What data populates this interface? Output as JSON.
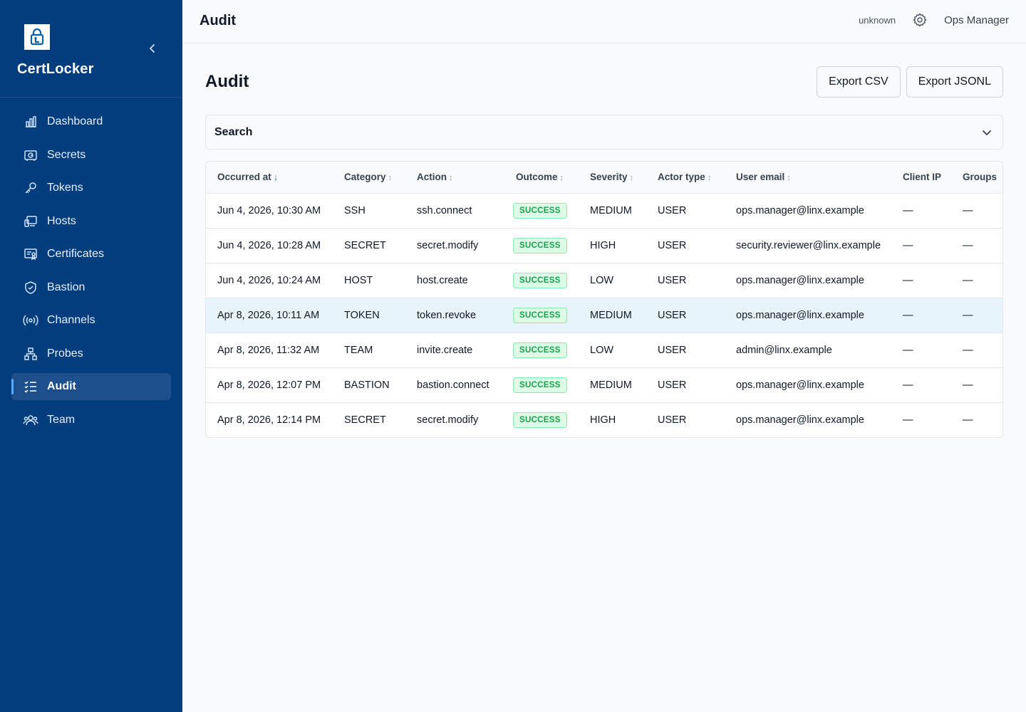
{
  "app": {
    "name": "CertLocker"
  },
  "sidebar": {
    "items": [
      {
        "label": "Dashboard",
        "icon": "bar-chart-icon"
      },
      {
        "label": "Secrets",
        "icon": "secrets-icon"
      },
      {
        "label": "Tokens",
        "icon": "key-icon"
      },
      {
        "label": "Hosts",
        "icon": "hosts-icon"
      },
      {
        "label": "Certificates",
        "icon": "certificate-icon"
      },
      {
        "label": "Bastion",
        "icon": "shield-icon"
      },
      {
        "label": "Channels",
        "icon": "broadcast-icon"
      },
      {
        "label": "Probes",
        "icon": "network-icon"
      },
      {
        "label": "Audit",
        "icon": "checklist-icon",
        "active": true
      },
      {
        "label": "Team",
        "icon": "users-icon"
      }
    ]
  },
  "topbar": {
    "title": "Audit",
    "status": "unknown",
    "user": "Ops Manager"
  },
  "main": {
    "title": "Audit",
    "export_csv": "Export CSV",
    "export_jsonl": "Export JSONL",
    "search_label": "Search"
  },
  "table": {
    "columns": [
      "Occurred at",
      "Category",
      "Action",
      "Outcome",
      "Severity",
      "Actor type",
      "User email",
      "Client IP",
      "Groups"
    ],
    "rows": [
      [
        "Jun 4, 2026, 10:30 AM",
        "SSH",
        "ssh.connect",
        "SUCCESS",
        "MEDIUM",
        "USER",
        "ops.manager@linx.example",
        "—",
        "—"
      ],
      [
        "Jun 4, 2026, 10:28 AM",
        "SECRET",
        "secret.modify",
        "SUCCESS",
        "HIGH",
        "USER",
        "security.reviewer@linx.example",
        "—",
        "—"
      ],
      [
        "Jun 4, 2026, 10:24 AM",
        "HOST",
        "host.create",
        "SUCCESS",
        "LOW",
        "USER",
        "ops.manager@linx.example",
        "—",
        "—"
      ],
      [
        "Apr 8, 2026, 10:11 AM",
        "TOKEN",
        "token.revoke",
        "SUCCESS",
        "MEDIUM",
        "USER",
        "ops.manager@linx.example",
        "—",
        "—"
      ],
      [
        "Apr 8, 2026, 11:32 AM",
        "TEAM",
        "invite.create",
        "SUCCESS",
        "LOW",
        "USER",
        "admin@linx.example",
        "—",
        "—"
      ],
      [
        "Apr 8, 2026, 12:07 PM",
        "BASTION",
        "bastion.connect",
        "SUCCESS",
        "MEDIUM",
        "USER",
        "ops.manager@linx.example",
        "—",
        "—"
      ],
      [
        "Apr 8, 2026, 12:14 PM",
        "SECRET",
        "secret.modify",
        "SUCCESS",
        "HIGH",
        "USER",
        "ops.manager@linx.example",
        "—",
        "—"
      ]
    ],
    "highlighted_row": 3
  },
  "colors": {
    "sidebar_bg": "#023e7d",
    "active_item_bg": "#1c4f8c",
    "success_text": "#16a34a",
    "success_bg": "#dcfce7",
    "sort_active": "#2563eb",
    "row_highlight": "#e8f4fb"
  }
}
